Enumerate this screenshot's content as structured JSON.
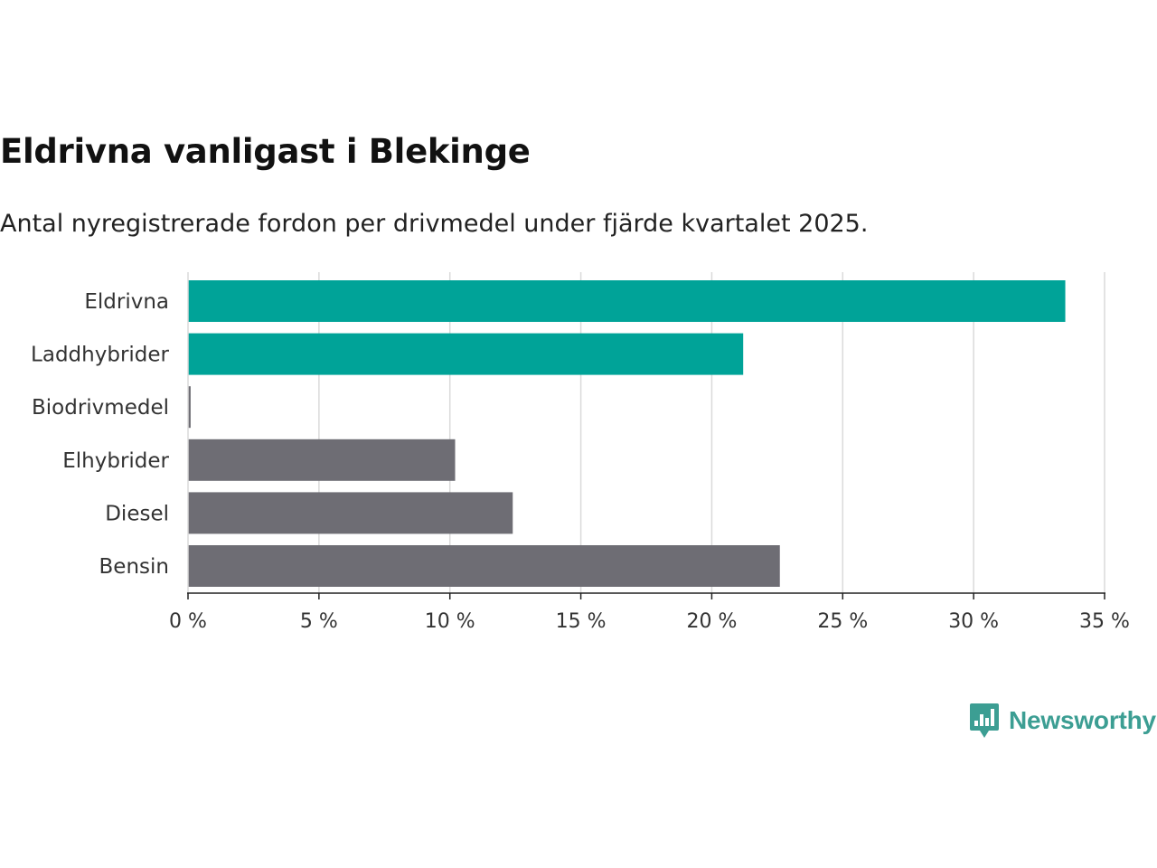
{
  "colors": {
    "highlight": "#00a398",
    "default": "#6e6d74",
    "grid": "#dadada",
    "axis": "#222222",
    "brand": "#3c9e93"
  },
  "chart_data": {
    "type": "bar",
    "orientation": "horizontal",
    "title": "Eldrivna vanligast i Blekinge",
    "subtitle": "Antal nyregistrerade fordon per drivmedel under fjärde kvartalet 2025.",
    "categories": [
      "Eldrivna",
      "Laddhybrider",
      "Biodrivmedel",
      "Elhybrider",
      "Diesel",
      "Bensin"
    ],
    "values": [
      33.5,
      21.2,
      0.1,
      10.2,
      12.4,
      22.6
    ],
    "highlighted": [
      true,
      true,
      false,
      false,
      false,
      false
    ],
    "xlim": [
      0,
      35
    ],
    "xticks": [
      0,
      5,
      10,
      15,
      20,
      25,
      30,
      35
    ],
    "tick_labels": [
      "0 %",
      "5 %",
      "10 %",
      "15 %",
      "20 %",
      "25 %",
      "30 %",
      "35 %"
    ],
    "unit": "%",
    "grid": true,
    "xlabel": "",
    "ylabel": ""
  },
  "brand": {
    "name": "Newsworthy",
    "icon": "newsworthy-logo-icon"
  }
}
